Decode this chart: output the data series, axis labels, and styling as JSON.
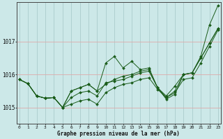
{
  "title": "Graphe pression niveau de la mer (hPa)",
  "bg_color": "#cce8e8",
  "grid_color": "#aacccc",
  "line_color": "#1a5c1a",
  "x_ticks": [
    0,
    1,
    2,
    3,
    4,
    5,
    6,
    7,
    8,
    9,
    10,
    11,
    12,
    13,
    14,
    15,
    16,
    17,
    18,
    19,
    20,
    21,
    22,
    23
  ],
  "ylim": [
    1014.5,
    1018.2
  ],
  "yticks": [
    1015,
    1016,
    1017
  ],
  "series": [
    [
      1015.85,
      1015.72,
      1015.35,
      1015.28,
      1015.3,
      1015.0,
      1015.1,
      1015.2,
      1015.25,
      1015.1,
      1015.45,
      1015.6,
      1015.7,
      1015.75,
      1015.85,
      1015.9,
      1015.55,
      1015.3,
      1015.45,
      1015.85,
      1015.9,
      1016.35,
      1016.85,
      1017.35
    ],
    [
      1015.85,
      1015.72,
      1015.35,
      1015.28,
      1015.3,
      1015.0,
      1015.3,
      1015.45,
      1015.5,
      1015.35,
      1015.75,
      1015.8,
      1015.85,
      1015.95,
      1016.05,
      1016.1,
      1015.6,
      1015.35,
      1015.65,
      1016.0,
      1016.05,
      1016.5,
      1016.95,
      1017.4
    ],
    [
      1015.85,
      1015.72,
      1015.35,
      1015.28,
      1015.3,
      1015.0,
      1015.5,
      1015.6,
      1015.7,
      1015.5,
      1016.35,
      1016.55,
      1016.2,
      1016.4,
      1016.15,
      1016.2,
      1015.6,
      1015.25,
      1015.4,
      1016.0,
      1016.05,
      1016.5,
      1016.95,
      1017.4
    ],
    [
      1015.85,
      1015.72,
      1015.35,
      1015.28,
      1015.3,
      1015.0,
      1015.5,
      1015.6,
      1015.7,
      1015.5,
      1015.7,
      1015.85,
      1015.95,
      1016.0,
      1016.1,
      1016.15,
      1015.6,
      1015.3,
      1015.5,
      1016.0,
      1016.05,
      1016.55,
      1017.5,
      1018.1
    ]
  ]
}
